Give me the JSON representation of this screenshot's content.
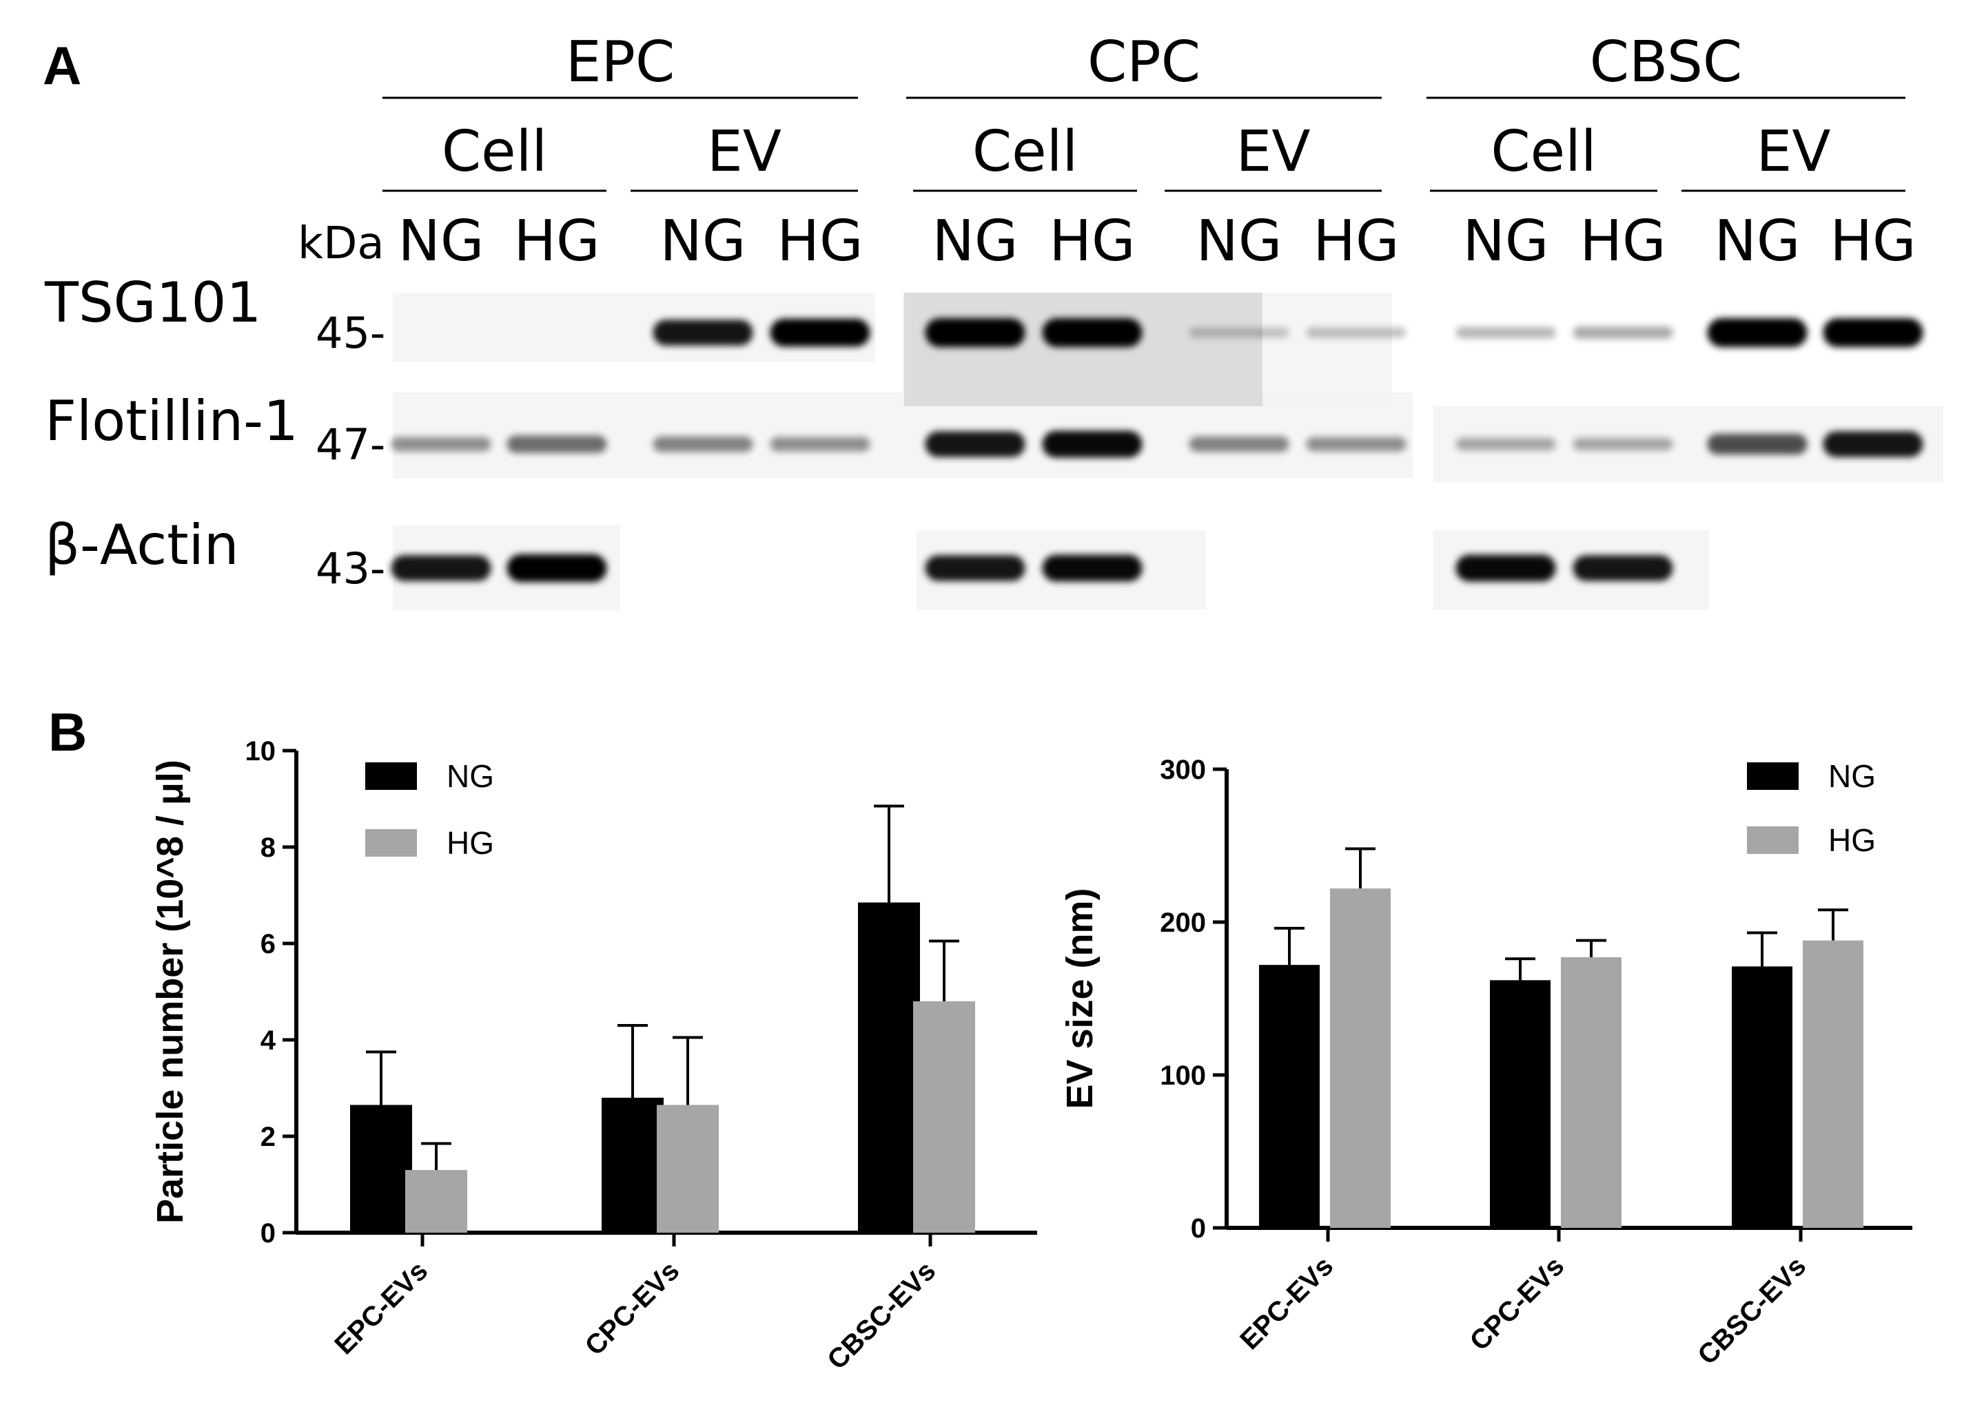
{
  "panel_a": {
    "letter": "A",
    "groups": [
      {
        "name": "EPC",
        "subgroups": [
          {
            "name": "Cell",
            "lanes": [
              "NG",
              "HG"
            ]
          },
          {
            "name": "EV",
            "lanes": [
              "NG",
              "HG"
            ]
          }
        ]
      },
      {
        "name": "CPC",
        "subgroups": [
          {
            "name": "Cell",
            "lanes": [
              "NG",
              "HG"
            ]
          },
          {
            "name": "EV",
            "lanes": [
              "NG",
              "HG"
            ]
          }
        ]
      },
      {
        "name": "CBSC",
        "subgroups": [
          {
            "name": "Cell",
            "lanes": [
              "NG",
              "HG"
            ]
          },
          {
            "name": "EV",
            "lanes": [
              "NG",
              "HG"
            ]
          }
        ]
      }
    ],
    "kda_label": "kDa",
    "rows": [
      {
        "protein": "TSG101",
        "marker": "45-",
        "intensities": [
          0,
          0,
          0.85,
          0.95,
          1.0,
          1.0,
          0.08,
          0.1,
          0.15,
          0.2,
          1.0,
          1.0
        ]
      },
      {
        "protein": "Flotillin-1",
        "marker": "47-",
        "intensities": [
          0.3,
          0.45,
          0.35,
          0.3,
          0.85,
          0.9,
          0.35,
          0.3,
          0.2,
          0.2,
          0.6,
          0.85
        ]
      },
      {
        "protein": "β-Actin",
        "marker": "43-",
        "intensities": [
          0.85,
          0.95,
          0,
          0,
          0.85,
          0.9,
          0,
          0,
          0.9,
          0.85,
          0,
          0
        ]
      }
    ],
    "colors": {
      "band": "#000000"
    }
  },
  "panel_b": {
    "letter": "B"
  },
  "chart_data": [
    {
      "type": "bar",
      "categories": [
        "EPC-EVs",
        "CPC-EVs",
        "CBSC-EVs"
      ],
      "series": [
        {
          "name": "NG",
          "color": "#000000",
          "values": [
            2.65,
            2.8,
            6.85
          ],
          "errors": [
            1.1,
            1.5,
            2.0
          ]
        },
        {
          "name": "HG",
          "color": "#a6a6a6",
          "values": [
            1.3,
            2.65,
            4.8
          ],
          "errors": [
            0.55,
            1.4,
            1.25
          ]
        }
      ],
      "ylabel": "Particle number (10^8 / μl)",
      "ylim": [
        0,
        10
      ],
      "yticks": [
        0,
        2,
        4,
        6,
        8,
        10
      ],
      "grid": false,
      "legend": "top-left"
    },
    {
      "type": "bar",
      "categories": [
        "EPC-EVs",
        "CPC-EVs",
        "CBSC-EVs"
      ],
      "series": [
        {
          "name": "NG",
          "color": "#000000",
          "values": [
            172,
            162,
            171
          ],
          "errors": [
            24,
            14,
            22
          ]
        },
        {
          "name": "HG",
          "color": "#a6a6a6",
          "values": [
            222,
            177,
            188
          ],
          "errors": [
            26,
            11,
            20
          ]
        }
      ],
      "ylabel": "EV size (nm)",
      "ylim": [
        0,
        300
      ],
      "yticks": [
        0,
        100,
        200,
        300
      ],
      "grid": false,
      "legend": "top-right"
    }
  ]
}
